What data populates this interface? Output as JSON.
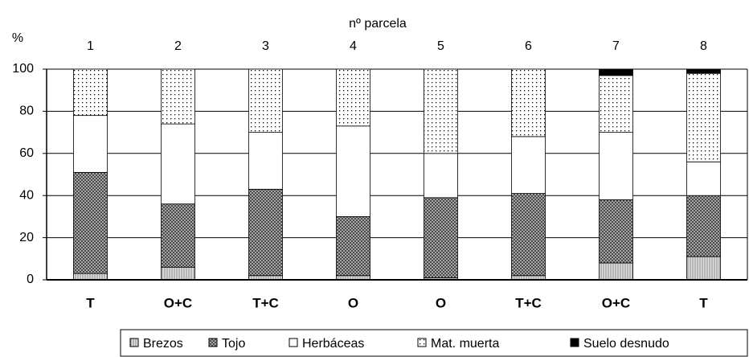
{
  "chart_data": {
    "type": "stacked_bar",
    "title": "nº parcela",
    "ylabel": "%",
    "parcels": [
      "1",
      "2",
      "3",
      "4",
      "5",
      "6",
      "7",
      "8"
    ],
    "categories": [
      "T",
      "O+C",
      "T+C",
      "O",
      "O",
      "T+C",
      "O+C",
      "T"
    ],
    "ylim": [
      0,
      100
    ],
    "yticks": [
      0,
      20,
      40,
      60,
      80,
      100
    ],
    "grid": true,
    "series": [
      {
        "name": "Brezos",
        "color": "#b8b8b8",
        "pattern": "vertical-lines",
        "values": [
          3,
          6,
          2,
          2,
          1,
          2,
          8,
          11
        ]
      },
      {
        "name": "Tojo",
        "color": "#555555",
        "pattern": "crosshatch",
        "values": [
          48,
          30,
          41,
          28,
          38,
          39,
          30,
          29
        ]
      },
      {
        "name": "Herbáceas",
        "color": "#ffffff",
        "pattern": "none",
        "values": [
          27,
          38,
          27,
          43,
          21,
          27,
          32,
          16
        ]
      },
      {
        "name": "Mat. muerta",
        "color": "#ffffff",
        "pattern": "dots",
        "values": [
          22,
          26,
          30,
          27,
          40,
          32,
          27,
          42
        ]
      },
      {
        "name": "Suelo desnudo",
        "color": "#000000",
        "pattern": "none",
        "values": [
          0,
          0,
          0,
          0,
          0,
          0,
          3,
          2
        ]
      }
    ]
  }
}
